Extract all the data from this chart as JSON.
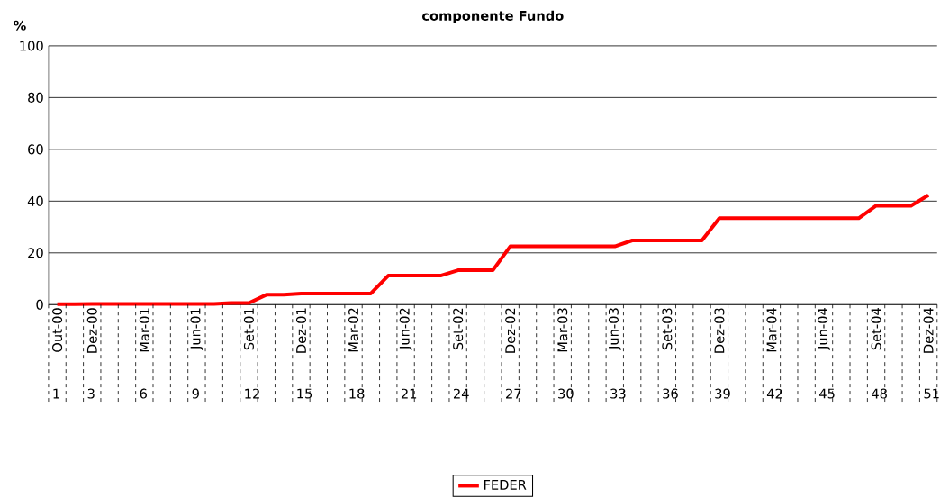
{
  "chart_data": {
    "type": "line",
    "title": "componente Fundo",
    "ylabel": "%",
    "categories": [
      "Out-00",
      null,
      "Dez-00",
      null,
      null,
      "Mar-01",
      null,
      null,
      "Jun-01",
      null,
      null,
      "Set-01",
      null,
      null,
      "Dez-01",
      null,
      null,
      "Mar-02",
      null,
      null,
      "Jun-02",
      null,
      null,
      "Set-02",
      null,
      null,
      "Dez-02",
      null,
      null,
      "Mar-03",
      null,
      null,
      "Jun-03",
      null,
      null,
      "Set-03",
      null,
      null,
      "Dez-03",
      null,
      null,
      "Mar-04",
      null,
      null,
      "Jun-04",
      null,
      null,
      "Set-04",
      null,
      null,
      "Dez-04"
    ],
    "series": [
      {
        "name": "FEDER",
        "color": "#ff0000",
        "values": [
          0.2,
          0.2,
          0.3,
          0.3,
          0.3,
          0.3,
          0.3,
          0.3,
          0.3,
          0.3,
          0.6,
          0.6,
          3.8,
          3.8,
          4.3,
          4.3,
          4.3,
          4.3,
          4.3,
          11.2,
          11.2,
          11.2,
          11.2,
          13.3,
          13.3,
          13.3,
          22.5,
          22.5,
          22.5,
          22.5,
          22.5,
          22.5,
          22.5,
          24.8,
          24.8,
          24.8,
          24.8,
          24.8,
          33.4,
          33.4,
          33.4,
          33.4,
          33.4,
          33.4,
          33.4,
          33.4,
          33.4,
          38.2,
          38.2,
          38.2,
          42.3
        ]
      }
    ],
    "ylim": [
      0,
      100
    ],
    "yticks": [
      0,
      20,
      40,
      60,
      80,
      100
    ],
    "grid": "y",
    "legend": "bottom",
    "marker": "none",
    "line_style": "solid",
    "annotations": [
      "1",
      "3",
      "6",
      "9",
      "12",
      "15",
      "18",
      "21",
      "24",
      "27",
      "30",
      "33",
      "36",
      "39",
      "42",
      "45",
      "48",
      "51"
    ]
  }
}
